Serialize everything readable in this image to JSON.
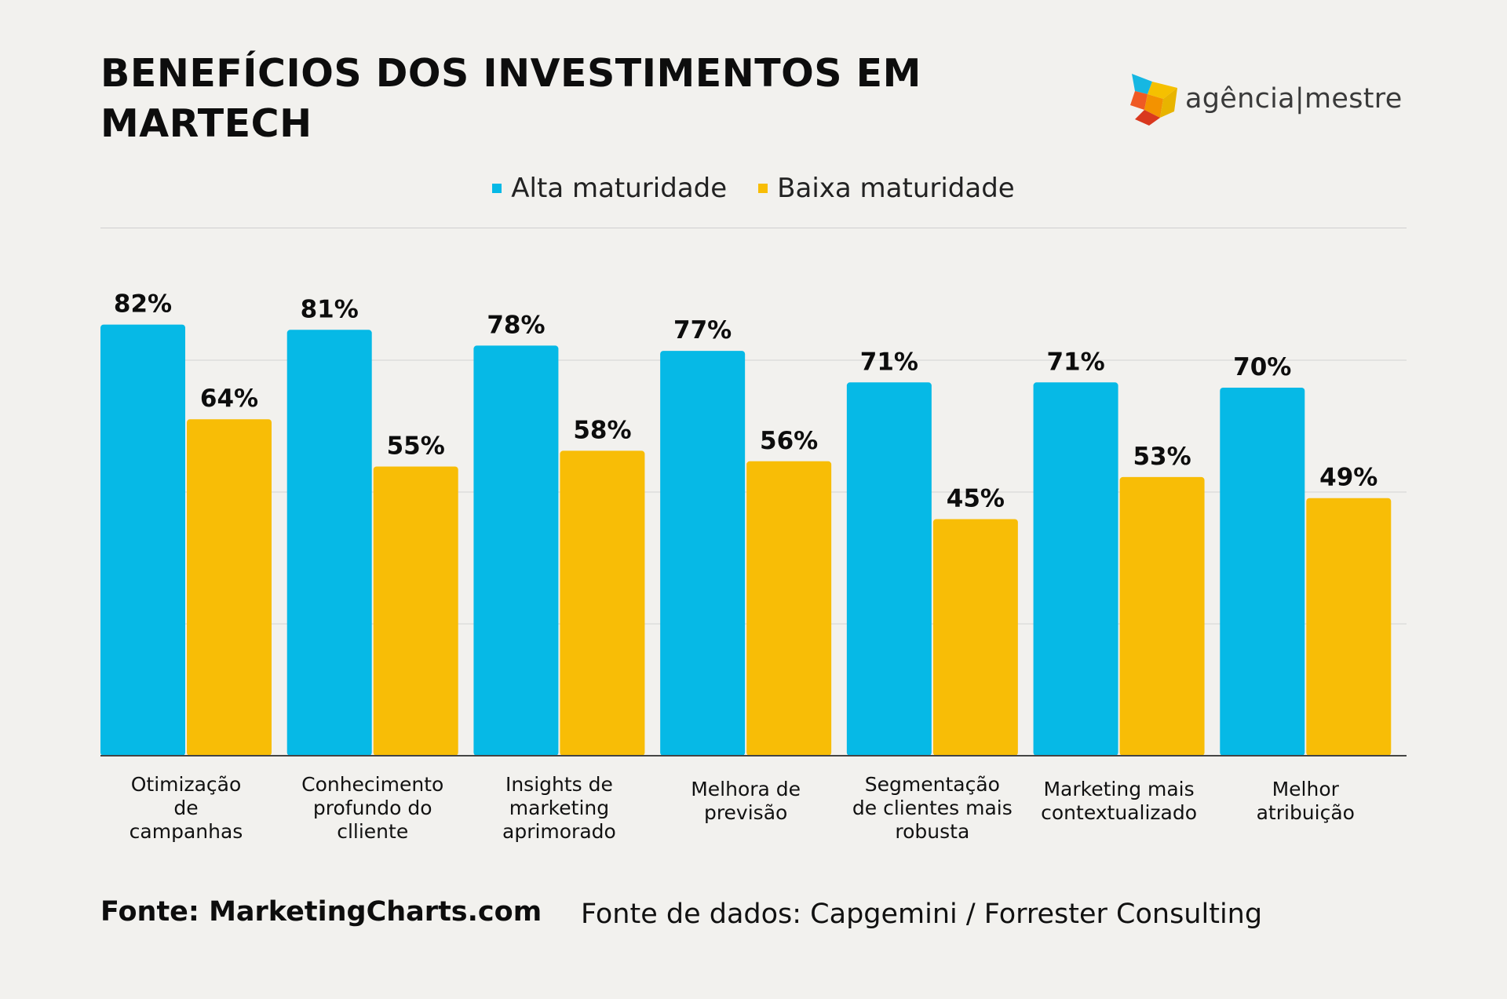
{
  "header": {
    "title": "BENEFÍCIOS DOS INVESTIMENTOS EM MARTECH",
    "brand": "agência|mestre"
  },
  "colors": {
    "alta": "#06b9e6",
    "baixa": "#f8bd06",
    "grid": "#d2d2d2",
    "axis": "#444444"
  },
  "chart_data": {
    "type": "bar",
    "title": "BENEFÍCIOS DOS INVESTIMENTOS EM MARTECH",
    "xlabel": "",
    "ylabel": "",
    "ylim": [
      0,
      100
    ],
    "grid": true,
    "legend_position": "top-center",
    "categories": [
      [
        "Otimização",
        "de",
        "campanhas"
      ],
      [
        "Conhecimento",
        "profundo do",
        "clliente"
      ],
      [
        "Insights de",
        "marketing",
        "aprimorado"
      ],
      [
        "Melhora de",
        "previsão"
      ],
      [
        "Segmentação",
        "de clientes mais",
        "robusta"
      ],
      [
        "Marketing mais",
        "contextualizado"
      ],
      [
        "Melhor",
        "atribuição"
      ]
    ],
    "series": [
      {
        "name": "Alta maturidade",
        "values": [
          82,
          81,
          78,
          77,
          71,
          71,
          70
        ],
        "labels": [
          "82%",
          "81%",
          "78%",
          "77%",
          "71%",
          "71%",
          "70%"
        ]
      },
      {
        "name": "Baixa maturidade",
        "values": [
          64,
          55,
          58,
          56,
          45,
          53,
          49
        ],
        "labels": [
          "64%",
          "55%",
          "58%",
          "56%",
          "45%",
          "53%",
          "49%"
        ]
      }
    ]
  },
  "footer": {
    "source": "Fonte: MarketingCharts.com",
    "data_source": "Fonte de dados: Capgemini / Forrester Consulting"
  }
}
